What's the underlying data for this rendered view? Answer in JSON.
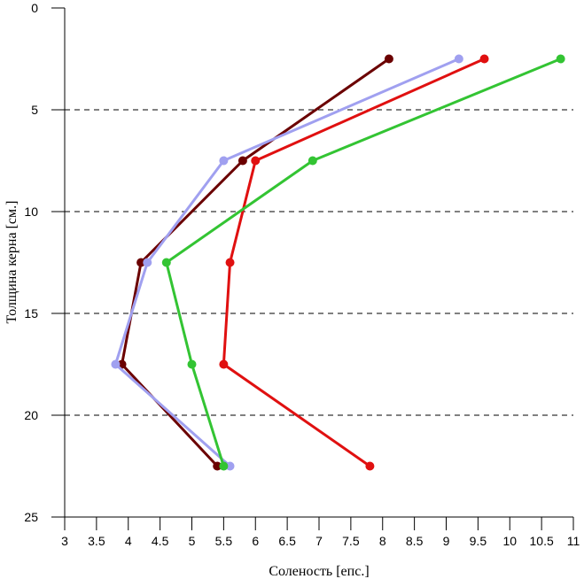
{
  "chart_data": {
    "type": "line",
    "title": "",
    "xlabel": "Соленость [епс.]",
    "ylabel": "Толщина керна [см.]",
    "xlim": [
      3,
      11
    ],
    "ylim": [
      0,
      25
    ],
    "y_inverted": true,
    "grid": "horizontal-dashed",
    "legend": "none",
    "x_ticks": [
      "3",
      "3.5",
      "4",
      "4.5",
      "5",
      "5.5",
      "6",
      "6.5",
      "7",
      "7.5",
      "8",
      "8.5",
      "9",
      "9.5",
      "10",
      "10.5",
      "11"
    ],
    "y_ticks": [
      "0",
      "5",
      "10",
      "15",
      "20",
      "25"
    ],
    "depths": [
      2.5,
      7.5,
      12.5,
      17.5,
      22.5
    ],
    "series": [
      {
        "color": "#6b0000",
        "salinity": [
          8.1,
          5.8,
          4.2,
          3.9,
          5.4
        ]
      },
      {
        "color": "#a0a0f0",
        "salinity": [
          9.2,
          5.5,
          4.3,
          3.8,
          5.6
        ]
      },
      {
        "color": "#e01010",
        "salinity": [
          9.6,
          6.0,
          5.6,
          5.5,
          7.8
        ]
      },
      {
        "color": "#33c433",
        "salinity": [
          10.8,
          6.9,
          4.6,
          5.0,
          5.5
        ]
      }
    ]
  }
}
